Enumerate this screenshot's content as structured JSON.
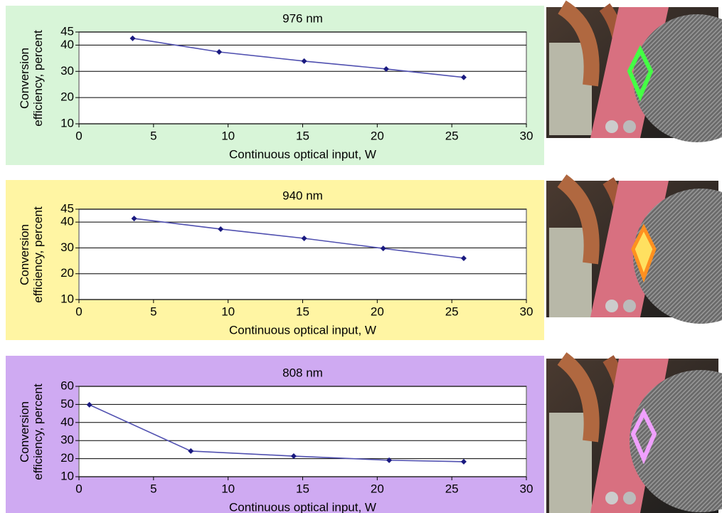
{
  "chart_data": [
    {
      "type": "line",
      "title": "976 nm",
      "x_label": "Continuous optical input, W",
      "y_label": "Conversion efficiency, percent",
      "background": "#d8f5d8",
      "grid": true,
      "xlim": [
        0,
        30
      ],
      "xticks": [
        0,
        5,
        10,
        15,
        20,
        25,
        30
      ],
      "ylim": [
        10,
        45
      ],
      "yticks": [
        10,
        20,
        30,
        40,
        45
      ],
      "x": [
        3.6,
        9.4,
        15.1,
        20.6,
        25.8
      ],
      "series": [
        {
          "color": "#1a1a80",
          "values": [
            42.6,
            37.4,
            33.9,
            30.9,
            27.7
          ]
        }
      ]
    },
    {
      "type": "line",
      "title": "940 nm",
      "x_label": "Continuous optical input, W",
      "y_label": "Conversion efficiency, percent",
      "background": "#fff5a3",
      "grid": true,
      "xlim": [
        0,
        30
      ],
      "xticks": [
        0,
        5,
        10,
        15,
        20,
        25,
        30
      ],
      "ylim": [
        10,
        45
      ],
      "yticks": [
        10,
        20,
        30,
        40,
        45
      ],
      "x": [
        3.7,
        9.5,
        15.1,
        20.4,
        25.8
      ],
      "series": [
        {
          "color": "#1a1a80",
          "values": [
            41.4,
            37.3,
            33.7,
            29.8,
            26.0
          ]
        }
      ]
    },
    {
      "type": "line",
      "title": "808 nm",
      "x_label": "Continuous optical input, W",
      "y_label": "Conversion efficiency, percent",
      "background": "#cfaaf2",
      "grid": true,
      "xlim": [
        0,
        30
      ],
      "xticks": [
        0,
        5,
        10,
        15,
        20,
        25,
        30
      ],
      "ylim": [
        10,
        60
      ],
      "yticks": [
        10,
        20,
        30,
        40,
        50,
        60
      ],
      "x": [
        0.7,
        7.5,
        14.4,
        20.8,
        25.8
      ],
      "series": [
        {
          "color": "#1a1a80",
          "values": [
            49.8,
            24.2,
            21.4,
            19.1,
            18.3
          ]
        }
      ]
    }
  ]
}
